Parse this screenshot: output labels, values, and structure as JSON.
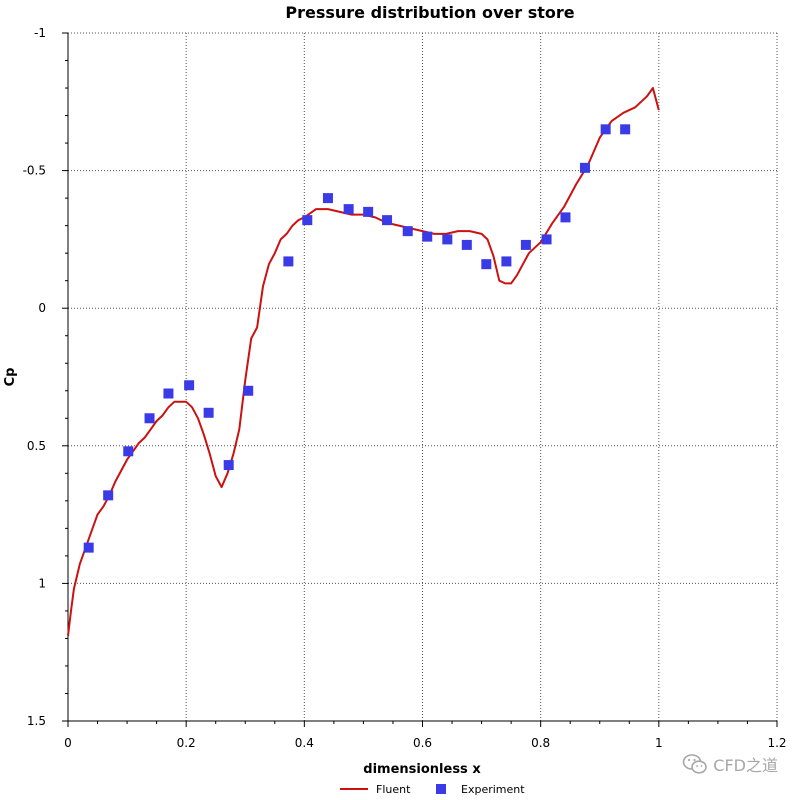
{
  "chart_data": {
    "type": "line",
    "title": "Pressure distribution over store",
    "xlabel": "dimensionless x",
    "ylabel": "Cp",
    "xlim": [
      0,
      1.2
    ],
    "ylim": [
      -1,
      1.5
    ],
    "y_axis_inverted": true,
    "grid": true,
    "legend_position": "bottom-center",
    "x_ticks": [
      "0",
      "0.2",
      "0.4",
      "0.6",
      "0.8",
      "1",
      "1.2"
    ],
    "y_ticks": [
      "-1",
      "-0.5",
      "0",
      "0.5",
      "1",
      "1.5"
    ],
    "x_tick_values": [
      0,
      0.2,
      0.4,
      0.6,
      0.8,
      1.0,
      1.2
    ],
    "y_tick_values": [
      -1,
      -0.5,
      0,
      0.5,
      1,
      1.5
    ],
    "series": [
      {
        "name": "Fluent",
        "kind": "line",
        "color": "#cc1111",
        "x": [
          0,
          0.005,
          0.01,
          0.02,
          0.03,
          0.04,
          0.05,
          0.06,
          0.07,
          0.08,
          0.09,
          0.1,
          0.11,
          0.12,
          0.13,
          0.14,
          0.15,
          0.16,
          0.17,
          0.18,
          0.19,
          0.2,
          0.21,
          0.22,
          0.23,
          0.24,
          0.25,
          0.26,
          0.27,
          0.28,
          0.29,
          0.3,
          0.31,
          0.32,
          0.33,
          0.34,
          0.35,
          0.36,
          0.37,
          0.38,
          0.39,
          0.4,
          0.42,
          0.44,
          0.46,
          0.48,
          0.5,
          0.52,
          0.54,
          0.56,
          0.58,
          0.6,
          0.62,
          0.64,
          0.66,
          0.68,
          0.7,
          0.71,
          0.72,
          0.73,
          0.74,
          0.75,
          0.76,
          0.77,
          0.78,
          0.8,
          0.82,
          0.84,
          0.86,
          0.88,
          0.9,
          0.92,
          0.94,
          0.96,
          0.98,
          0.99,
          1.0
        ],
        "y": [
          1.19,
          1.1,
          1.02,
          0.93,
          0.87,
          0.81,
          0.75,
          0.72,
          0.68,
          0.63,
          0.59,
          0.55,
          0.52,
          0.49,
          0.47,
          0.44,
          0.41,
          0.39,
          0.36,
          0.34,
          0.34,
          0.34,
          0.36,
          0.4,
          0.46,
          0.53,
          0.61,
          0.65,
          0.6,
          0.53,
          0.44,
          0.26,
          0.11,
          0.07,
          -0.08,
          -0.16,
          -0.2,
          -0.25,
          -0.27,
          -0.3,
          -0.32,
          -0.33,
          -0.36,
          -0.36,
          -0.35,
          -0.34,
          -0.34,
          -0.33,
          -0.31,
          -0.3,
          -0.29,
          -0.28,
          -0.27,
          -0.27,
          -0.28,
          -0.28,
          -0.27,
          -0.25,
          -0.19,
          -0.1,
          -0.09,
          -0.09,
          -0.12,
          -0.16,
          -0.2,
          -0.24,
          -0.31,
          -0.37,
          -0.45,
          -0.52,
          -0.62,
          -0.68,
          -0.71,
          -0.73,
          -0.77,
          -0.8,
          -0.72
        ]
      },
      {
        "name": "Experiment",
        "kind": "scatter",
        "color": "#3a3ae6",
        "x": [
          0.035,
          0.068,
          0.102,
          0.138,
          0.17,
          0.205,
          0.238,
          0.272,
          0.305,
          0.373,
          0.405,
          0.44,
          0.475,
          0.508,
          0.54,
          0.575,
          0.608,
          0.642,
          0.675,
          0.708,
          0.742,
          0.775,
          0.81,
          0.842,
          0.875,
          0.91,
          0.943
        ],
        "y": [
          0.87,
          0.68,
          0.52,
          0.4,
          0.31,
          0.28,
          0.38,
          0.57,
          0.3,
          -0.17,
          -0.32,
          -0.4,
          -0.36,
          -0.35,
          -0.32,
          -0.28,
          -0.26,
          -0.25,
          -0.23,
          -0.16,
          -0.17,
          -0.23,
          -0.25,
          -0.33,
          -0.51,
          -0.65,
          -0.65
        ]
      }
    ]
  },
  "legend": {
    "fluent_label": "Fluent",
    "experiment_label": "Experiment"
  },
  "watermark": {
    "text": "CFD之道",
    "icon": "wechat-icon"
  }
}
